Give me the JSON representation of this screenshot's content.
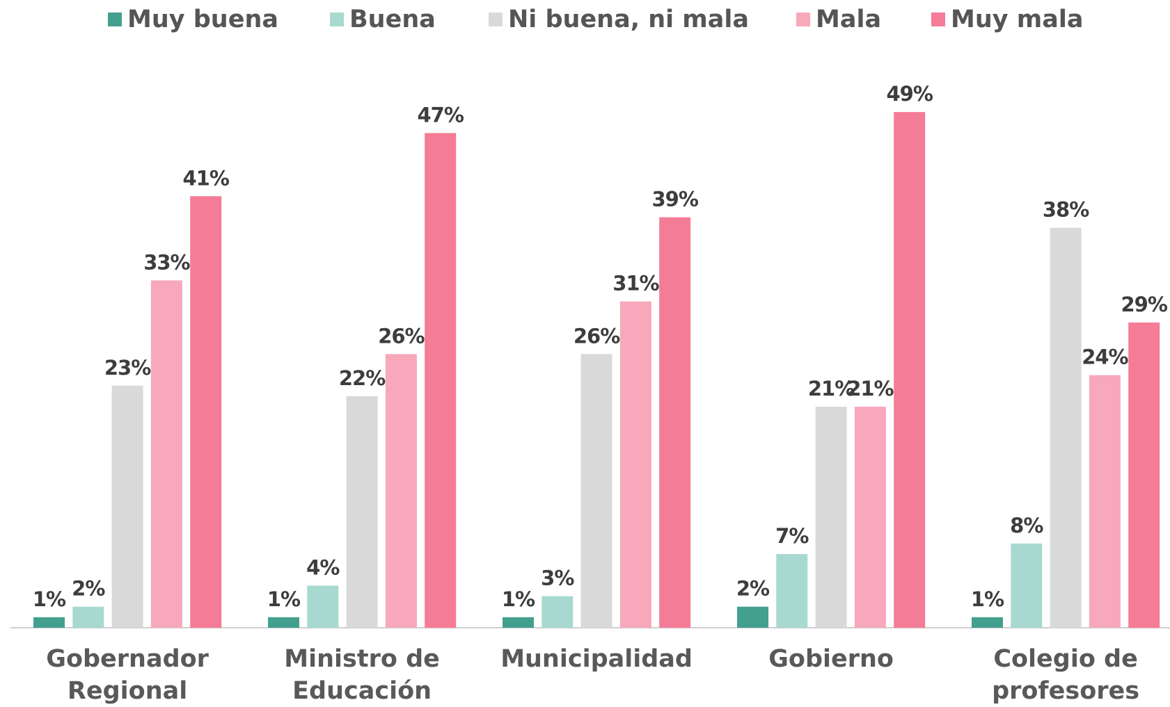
{
  "chart_data": {
    "type": "bar",
    "categories": [
      "Gobernador Regional",
      "Ministro de Educación",
      "Municipalidad",
      "Gobierno",
      "Colegio de profesores"
    ],
    "series": [
      {
        "name": "Muy buena",
        "color": "#43a08e",
        "values": [
          1,
          1,
          1,
          2,
          1
        ],
        "value_labels": [
          "1%",
          "1%",
          "1%",
          "2%",
          "1%"
        ]
      },
      {
        "name": "Buena",
        "color": "#a8d9d0",
        "values": [
          2,
          4,
          3,
          7,
          8
        ],
        "value_labels": [
          "2%",
          "4%",
          "3%",
          "7%",
          "8%"
        ]
      },
      {
        "name": "Ni buena, ni mala",
        "color": "#d9d9d9",
        "values": [
          23,
          22,
          26,
          21,
          38
        ],
        "value_labels": [
          "23%",
          "22%",
          "26%",
          "21%",
          "38%"
        ]
      },
      {
        "name": "Mala",
        "color": "#f7a8ba",
        "values": [
          33,
          26,
          31,
          21,
          24
        ],
        "value_labels": [
          "33%",
          "26%",
          "31%",
          "21%",
          "24%"
        ]
      },
      {
        "name": "Muy mala",
        "color": "#f47c96",
        "values": [
          41,
          47,
          39,
          49,
          29
        ],
        "value_labels": [
          "41%",
          "47%",
          "39%",
          "49%",
          "29%"
        ]
      }
    ],
    "ylim": [
      0,
      50
    ],
    "legend": "top"
  }
}
